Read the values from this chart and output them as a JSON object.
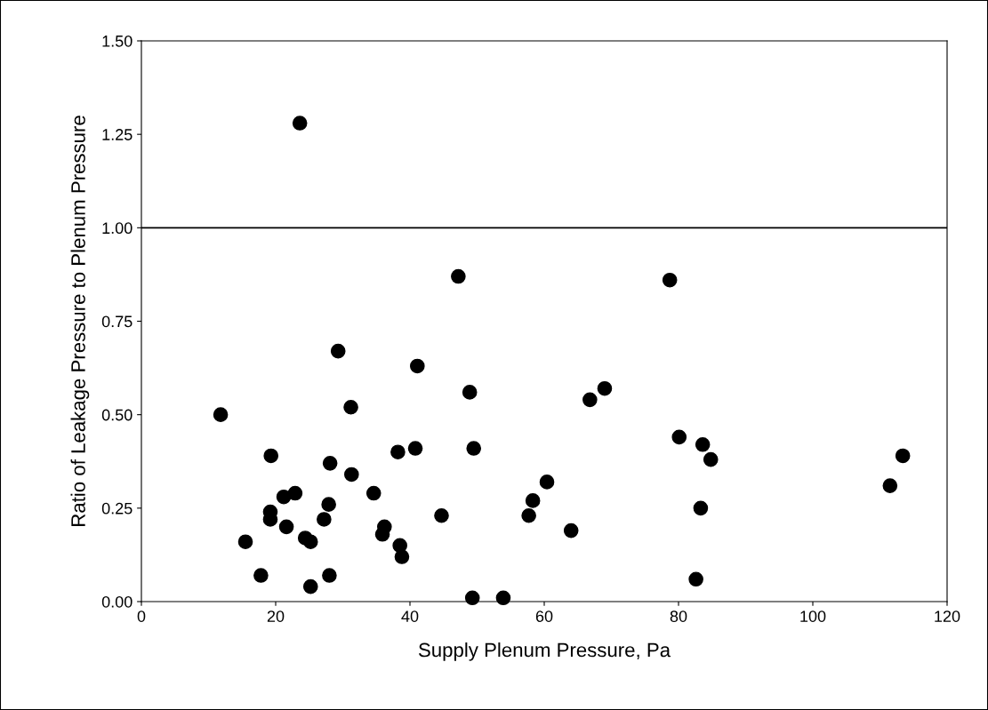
{
  "chart_data": {
    "type": "scatter",
    "xlabel": "Supply Plenum Pressure, Pa",
    "ylabel": "Ratio of Leakage Pressure to Plenum Pressure",
    "xlim": [
      0,
      120
    ],
    "xticks": [
      0,
      20,
      40,
      60,
      80,
      100,
      120
    ],
    "ylim": [
      0,
      1.5
    ],
    "yticks": [
      {
        "value": 0,
        "label": "0.00"
      },
      {
        "value": 0.25,
        "label": "0.25"
      },
      {
        "value": 0.5,
        "label": "0.50"
      },
      {
        "value": 0.75,
        "label": "0.75"
      },
      {
        "value": 1,
        "label": "1.00"
      },
      {
        "value": 1.25,
        "label": "1.25"
      },
      {
        "value": 1.5,
        "label": "1.50"
      }
    ],
    "grid": false,
    "legend": false,
    "marker": "circle",
    "ref_lines": [
      {
        "axis": "y",
        "value": 1,
        "color": "#000000"
      }
    ],
    "series": [
      {
        "color": "#000000",
        "x": [
          11.8,
          29.3,
          31.2,
          19.3,
          28.1,
          31.3,
          38.2,
          40.8,
          21.2,
          22.9,
          27.9,
          34.6,
          19.2,
          19.2,
          27.2,
          21.6,
          36.2,
          35.9,
          24.4,
          25.2,
          15.5,
          38.5,
          38.8,
          17.8,
          28.0,
          25.2,
          47.2,
          78.7,
          41.1,
          48.9,
          69.0,
          66.8,
          49.5,
          80.1,
          83.6,
          84.8,
          60.4,
          58.3,
          57.7,
          44.7,
          64.0,
          83.3,
          82.6,
          49.3,
          53.9,
          23.6,
          111.5,
          113.4
        ],
        "values": [
          0.5,
          0.67,
          0.52,
          0.39,
          0.37,
          0.34,
          0.4,
          0.41,
          0.28,
          0.29,
          0.26,
          0.29,
          0.24,
          0.22,
          0.22,
          0.2,
          0.2,
          0.18,
          0.17,
          0.16,
          0.16,
          0.15,
          0.12,
          0.07,
          0.07,
          0.04,
          0.87,
          0.86,
          0.63,
          0.56,
          0.57,
          0.54,
          0.41,
          0.44,
          0.42,
          0.38,
          0.32,
          0.27,
          0.23,
          0.23,
          0.19,
          0.25,
          0.06,
          0.01,
          0.01,
          1.28,
          0.31,
          0.39
        ]
      }
    ]
  }
}
